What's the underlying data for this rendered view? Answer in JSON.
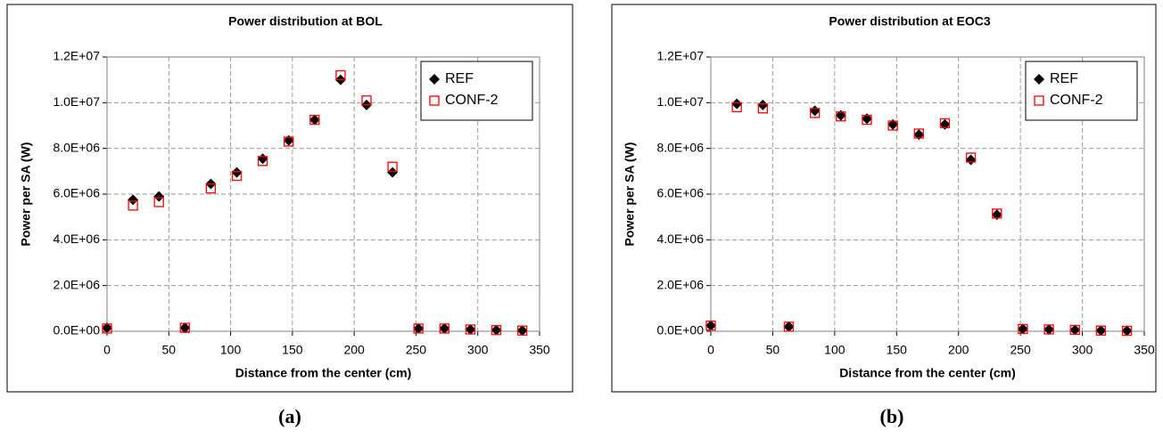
{
  "chart_data": [
    {
      "type": "scatter",
      "title": "Power distribution at BOL",
      "x_label": "Distance from the center (cm)",
      "y_label": "Power per SA (W)",
      "caption": "(a)",
      "x": [
        0,
        21,
        42,
        63,
        84,
        105,
        126,
        147,
        168,
        189,
        210,
        231,
        252,
        273,
        294,
        315,
        336
      ],
      "series": [
        {
          "name": "REF",
          "color": "#000000",
          "marker": "diamond",
          "values": [
            150000,
            5750000,
            5900000,
            150000,
            6450000,
            6950000,
            7550000,
            8350000,
            9250000,
            11000000,
            9900000,
            6950000,
            120000,
            120000,
            80000,
            50000,
            30000
          ]
        },
        {
          "name": "CONF-2",
          "color": "#ff0000",
          "marker": "square",
          "values": [
            120000,
            5500000,
            5650000,
            150000,
            6250000,
            6800000,
            7450000,
            8300000,
            9250000,
            11200000,
            10100000,
            7200000,
            120000,
            120000,
            80000,
            50000,
            30000
          ]
        }
      ],
      "xlim": [
        0,
        350
      ],
      "xticks": [
        0,
        50,
        100,
        150,
        200,
        250,
        300,
        350
      ],
      "ylim": [
        0,
        12000000
      ],
      "yticks": [
        {
          "value": 0,
          "label": "0.0E+00"
        },
        {
          "value": 2000000,
          "label": "2.0E+06"
        },
        {
          "value": 4000000,
          "label": "4.0E+06"
        },
        {
          "value": 6000000,
          "label": "6.0E+06"
        },
        {
          "value": 8000000,
          "label": "8.0E+06"
        },
        {
          "value": 10000000,
          "label": "1.0E+07"
        },
        {
          "value": 12000000,
          "label": "1.2E+07"
        }
      ],
      "grid": true,
      "legend": "upper-right"
    },
    {
      "type": "scatter",
      "title": "Power distribution at EOC3",
      "x_label": "Distance from the center (cm)",
      "y_label": "Power per SA (W)",
      "caption": "(b)",
      "x": [
        0,
        21,
        42,
        63,
        84,
        105,
        126,
        147,
        168,
        189,
        210,
        231,
        252,
        273,
        294,
        315,
        336
      ],
      "series": [
        {
          "name": "REF",
          "color": "#000000",
          "marker": "diamond",
          "values": [
            250000,
            9950000,
            9900000,
            200000,
            9650000,
            9450000,
            9300000,
            9050000,
            8600000,
            9050000,
            7500000,
            5100000,
            100000,
            80000,
            60000,
            30000,
            20000
          ]
        },
        {
          "name": "CONF-2",
          "color": "#ff0000",
          "marker": "square",
          "values": [
            250000,
            9800000,
            9750000,
            200000,
            9550000,
            9400000,
            9250000,
            9000000,
            8650000,
            9100000,
            7600000,
            5150000,
            100000,
            80000,
            60000,
            30000,
            20000
          ]
        }
      ],
      "xlim": [
        0,
        350
      ],
      "xticks": [
        0,
        50,
        100,
        150,
        200,
        250,
        300,
        350
      ],
      "ylim": [
        0,
        12000000
      ],
      "yticks": [
        {
          "value": 0,
          "label": "0.0E+00"
        },
        {
          "value": 2000000,
          "label": "2.0E+06"
        },
        {
          "value": 4000000,
          "label": "4.0E+06"
        },
        {
          "value": 6000000,
          "label": "6.0E+06"
        },
        {
          "value": 8000000,
          "label": "8.0E+06"
        },
        {
          "value": 10000000,
          "label": "1.0E+07"
        },
        {
          "value": 12000000,
          "label": "1.2E+07"
        }
      ],
      "grid": true,
      "legend": "upper-right"
    }
  ]
}
